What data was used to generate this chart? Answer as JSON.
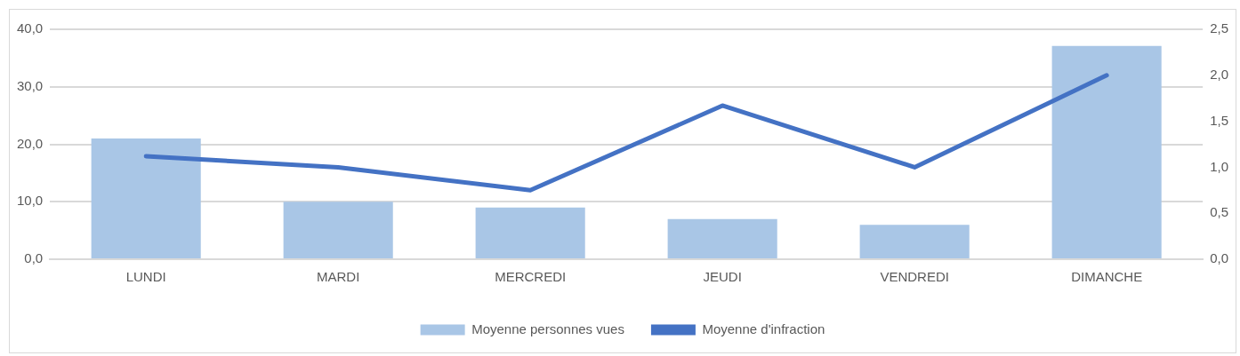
{
  "chart_data": {
    "type": "bar",
    "categories": [
      "LUNDI",
      "MARDI",
      "MERCREDI",
      "JEUDI",
      "VENDREDI",
      "DIMANCHE"
    ],
    "series": [
      {
        "name": "Moyenne personnes vues",
        "color": "#a9c6e6",
        "values": [
          21.0,
          10.0,
          9.0,
          7.0,
          6.0,
          37.1
        ]
      },
      {
        "name": "Moyenne d'infraction",
        "type": "line",
        "axis": "y2",
        "color": "#4472c4",
        "marker": "none",
        "values": [
          1.12,
          1.0,
          0.75,
          1.67,
          1.0,
          2.0
        ]
      }
    ],
    "ylim": [
      0,
      40
    ],
    "yticks": [
      {
        "value": 0,
        "label": "0,0"
      },
      {
        "value": 10,
        "label": "10,0"
      },
      {
        "value": 20,
        "label": "20,0"
      },
      {
        "value": 30,
        "label": "30,0"
      },
      {
        "value": 40,
        "label": "40,0"
      }
    ],
    "y2lim": [
      0,
      2.5
    ],
    "y2ticks": [
      {
        "value": 0,
        "label": "0,0"
      },
      {
        "value": 0.5,
        "label": "0,5"
      },
      {
        "value": 1,
        "label": "1,0"
      },
      {
        "value": 1.5,
        "label": "1,5"
      },
      {
        "value": 2,
        "label": "2,0"
      },
      {
        "value": 2.5,
        "label": "2,5"
      }
    ],
    "grid": "y",
    "legend": "bottom"
  }
}
